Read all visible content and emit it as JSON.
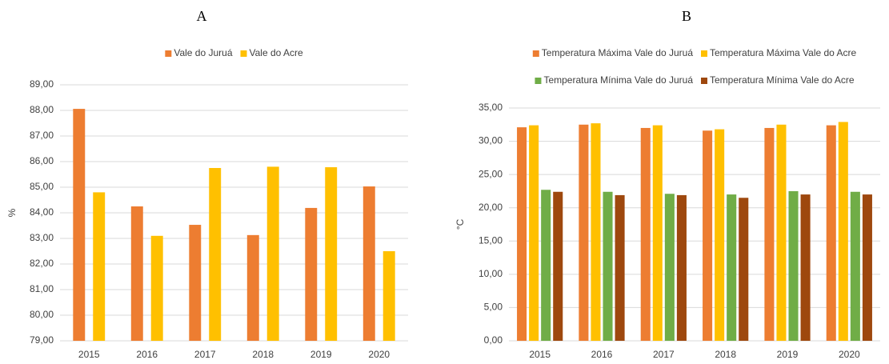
{
  "chart_data": [
    {
      "type": "bar",
      "title": "A",
      "y_label": "%",
      "categories": [
        "2015",
        "2016",
        "2017",
        "2018",
        "2019",
        "2020"
      ],
      "series": [
        {
          "name": "Vale do Juruá",
          "color": "#ed7d31",
          "values": [
            88.06,
            84.25,
            83.53,
            83.13,
            84.19,
            85.03
          ]
        },
        {
          "name": "Vale do Acre",
          "color": "#ffc000",
          "values": [
            84.8,
            83.1,
            85.75,
            85.8,
            85.78,
            82.5
          ]
        }
      ],
      "ylim": [
        79,
        89
      ],
      "yticks": [
        {
          "value": 79,
          "label": "79,00"
        },
        {
          "value": 80,
          "label": "80,00"
        },
        {
          "value": 81,
          "label": "81,00"
        },
        {
          "value": 82,
          "label": "82,00"
        },
        {
          "value": 83,
          "label": "83,00"
        },
        {
          "value": 84,
          "label": "84,00"
        },
        {
          "value": 85,
          "label": "85,00"
        },
        {
          "value": 86,
          "label": "86,00"
        },
        {
          "value": 87,
          "label": "87,00"
        },
        {
          "value": 88,
          "label": "88,00"
        },
        {
          "value": 89,
          "label": "89,00"
        }
      ],
      "grid": true,
      "legend": "top"
    },
    {
      "type": "bar",
      "title": "B",
      "y_label": "°C",
      "categories": [
        "2015",
        "2016",
        "2017",
        "2018",
        "2019",
        "2020"
      ],
      "series": [
        {
          "name": "Temperatura Máxima Vale do Juruá",
          "color": "#ed7d31",
          "values": [
            32.1,
            32.5,
            32.0,
            31.6,
            32.0,
            32.4
          ]
        },
        {
          "name": "Temperatura Máxima Vale do Acre",
          "color": "#ffc000",
          "values": [
            32.4,
            32.7,
            32.4,
            31.8,
            32.5,
            32.9
          ]
        },
        {
          "name": "Temperatura Mínima Vale do Juruá",
          "color": "#70ad47",
          "values": [
            22.7,
            22.4,
            22.1,
            22.0,
            22.5,
            22.4
          ]
        },
        {
          "name": "Temperatura Mínima Vale do Acre",
          "color": "#9e480e",
          "values": [
            22.4,
            21.9,
            21.9,
            21.5,
            22.0,
            22.0
          ]
        }
      ],
      "ylim": [
        0,
        35
      ],
      "yticks": [
        {
          "value": 0,
          "label": "0,00"
        },
        {
          "value": 5,
          "label": "5,00"
        },
        {
          "value": 10,
          "label": "10,00"
        },
        {
          "value": 15,
          "label": "15,00"
        },
        {
          "value": 20,
          "label": "20,00"
        },
        {
          "value": 25,
          "label": "25,00"
        },
        {
          "value": 30,
          "label": "30,00"
        },
        {
          "value": 35,
          "label": "35,00"
        }
      ],
      "grid": true,
      "legend": "top"
    }
  ]
}
